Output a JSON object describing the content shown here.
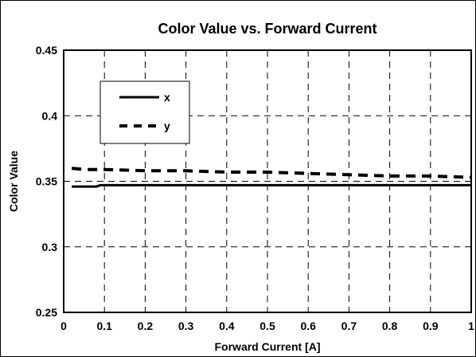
{
  "chart_data": {
    "type": "line",
    "title": "Color Value vs. Forward Current",
    "xlabel": "Forward Current [A]",
    "ylabel": "Color Value",
    "xlim": [
      0,
      1
    ],
    "ylim": [
      0.25,
      0.45
    ],
    "x_ticks": [
      0,
      0.1,
      0.2,
      0.3,
      0.4,
      0.5,
      0.6,
      0.7,
      0.8,
      0.9,
      1
    ],
    "x_tick_labels": [
      "0",
      "0.1",
      "0.2",
      "0.3",
      "0.4",
      "0.5",
      "0.6",
      "0.7",
      "0.8",
      "0.9",
      "1"
    ],
    "y_ticks": [
      0.25,
      0.3,
      0.35,
      0.4,
      0.45
    ],
    "y_tick_labels": [
      "0.25",
      "0.3",
      "0.35",
      "0.4",
      "0.45"
    ],
    "grid": "dashed",
    "legend_position": "top-left",
    "series": [
      {
        "name": "x",
        "style": "solid",
        "color": "#000000",
        "x": [
          0.02,
          0.05,
          0.08,
          0.09,
          0.1,
          0.2,
          0.3,
          0.4,
          0.5,
          0.6,
          0.7,
          0.8,
          0.9,
          1.0
        ],
        "y": [
          0.346,
          0.346,
          0.346,
          0.347,
          0.347,
          0.347,
          0.347,
          0.347,
          0.347,
          0.347,
          0.347,
          0.347,
          0.347,
          0.347
        ]
      },
      {
        "name": "y",
        "style": "dashed",
        "color": "#000000",
        "x": [
          0.02,
          0.05,
          0.1,
          0.2,
          0.3,
          0.4,
          0.5,
          0.6,
          0.7,
          0.8,
          0.9,
          1.0
        ],
        "y": [
          0.36,
          0.359,
          0.359,
          0.358,
          0.358,
          0.357,
          0.357,
          0.356,
          0.355,
          0.354,
          0.354,
          0.353
        ]
      }
    ]
  }
}
